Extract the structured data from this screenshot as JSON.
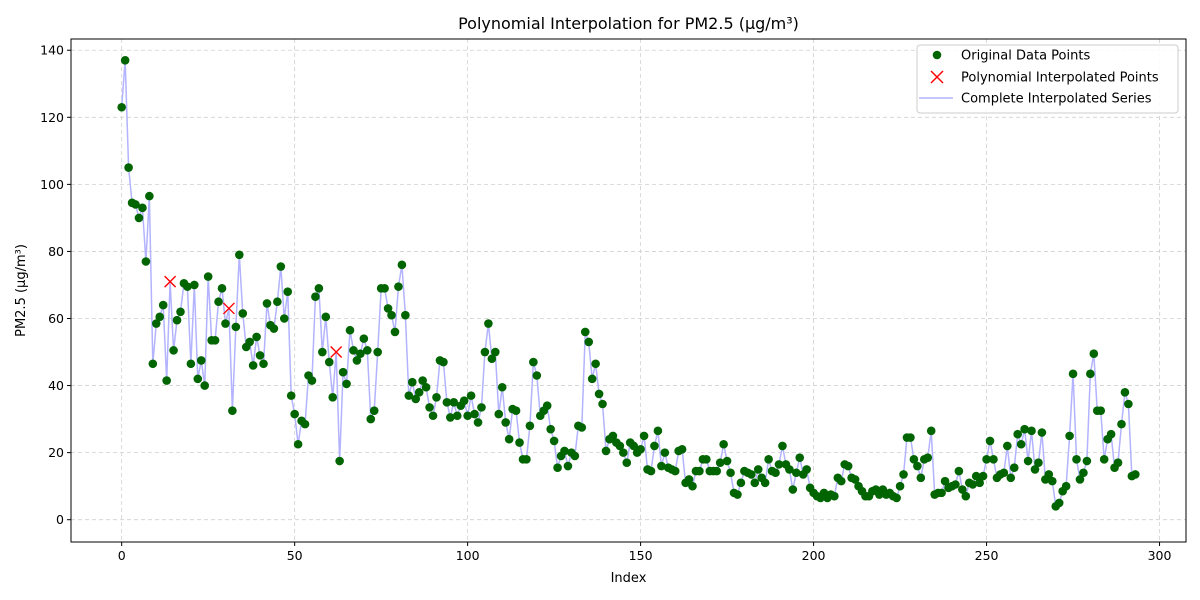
{
  "chart_data": {
    "type": "line",
    "title": "Polynomial Interpolation for PM2.5 (µg/m³)",
    "xlabel": "Index",
    "ylabel": "PM2.5 (µg/m³)",
    "xlim": [
      -14.65,
      307.65
    ],
    "ylim": [
      -6.65,
      143.35
    ],
    "xticks": [
      0,
      50,
      100,
      150,
      200,
      250,
      300
    ],
    "yticks": [
      0,
      20,
      40,
      60,
      80,
      100,
      120,
      140
    ],
    "grid": true,
    "legend_position": "top-right",
    "legend": {
      "original": "Original Data Points",
      "interpolated_points": "Polynomial Interpolated Points",
      "complete_series": "Complete Interpolated Series"
    },
    "colors": {
      "original": "#006400",
      "interpolated_points": "#ff0000",
      "complete_series": "#b3b3ff",
      "grid": "#d0d0d0"
    },
    "original_x_start": 0,
    "original_values": [
      123,
      137,
      105,
      94.5,
      94,
      90,
      93,
      77,
      96.5,
      46.5,
      58.5,
      60.5,
      64,
      41.5,
      null,
      50.5,
      59.5,
      62,
      70.5,
      69.5,
      46.5,
      70,
      42,
      47.5,
      40,
      72.5,
      53.5,
      53.5,
      65,
      69,
      58.5,
      null,
      32.5,
      57.5,
      79,
      61.5,
      51.5,
      53,
      46,
      54.5,
      49,
      46.5,
      64.5,
      58,
      57,
      65,
      75.5,
      60,
      68,
      37,
      31.5,
      22.5,
      29.5,
      28.5,
      43,
      41.5,
      66.5,
      69,
      50,
      60.5,
      47,
      36.5,
      null,
      17.5,
      44,
      40.5,
      56.5,
      50.5,
      47.5,
      49.5,
      54,
      50.5,
      30,
      32.5,
      50,
      69,
      69,
      63,
      61,
      56,
      69.5,
      76,
      61,
      37,
      41,
      36,
      38,
      41.5,
      39.5,
      33.5,
      31,
      36.5,
      47.5,
      47,
      35,
      30.5,
      35,
      31,
      34,
      35.5,
      31,
      37,
      31.5,
      29,
      33.5,
      50,
      58.5,
      48,
      50,
      31.5,
      39.5,
      29,
      24,
      33,
      32.5,
      23,
      18,
      18,
      28,
      47,
      43,
      31,
      32.5,
      34,
      27,
      23.5,
      15.5,
      19,
      20.5,
      16,
      20,
      19,
      28,
      27.5,
      56,
      53,
      42,
      46.5,
      37.5,
      34.5,
      20.5,
      24,
      25,
      23,
      22,
      20,
      17,
      23,
      22,
      20,
      21,
      25,
      15,
      14.5,
      22,
      26.5,
      16,
      20,
      15.5,
      15,
      14.5,
      20.5,
      21,
      11,
      12,
      10,
      14.5,
      14.5,
      18,
      18,
      14.5,
      14.5,
      14.5,
      17,
      22.5,
      17.5,
      14,
      8,
      7.5,
      11,
      14.5,
      14,
      13.5,
      11,
      15,
      12.5,
      11,
      18,
      14.5,
      14,
      16.5,
      22,
      16.5,
      15,
      9,
      14,
      18.5,
      13.5,
      15,
      9.5,
      8,
      7,
      6.5,
      8,
      6.5,
      7.5,
      7,
      12.5,
      11.5,
      16.5,
      16,
      12.5,
      12,
      10,
      8.5,
      7,
      7,
      8.5,
      9,
      7.5,
      9,
      7.5,
      8,
      7,
      6.5,
      10,
      13.5,
      24.5,
      24.5,
      18,
      16,
      12.5,
      18,
      18.5,
      26.5,
      7.5,
      8,
      8,
      11.5,
      9.5,
      10,
      10.5,
      14.5,
      9,
      7,
      11,
      10.5,
      13,
      11,
      13,
      18,
      23.5,
      18,
      12.5,
      13.5,
      14,
      22,
      12.5,
      15.5,
      25.5,
      22.5,
      27,
      17.5,
      26.5,
      15,
      17,
      26,
      12,
      13.5,
      11.5,
      4,
      5,
      8.5,
      10,
      25,
      43.5,
      18,
      12,
      14,
      17.5,
      43.5,
      49.5,
      32.5,
      32.5,
      18,
      24,
      25.5,
      15.5,
      17,
      28.5,
      38,
      34.5,
      13,
      13.5
    ],
    "interpolated_points": [
      {
        "x": 14,
        "y": 71
      },
      {
        "x": 31,
        "y": 63
      },
      {
        "x": 62,
        "y": 50
      }
    ]
  }
}
